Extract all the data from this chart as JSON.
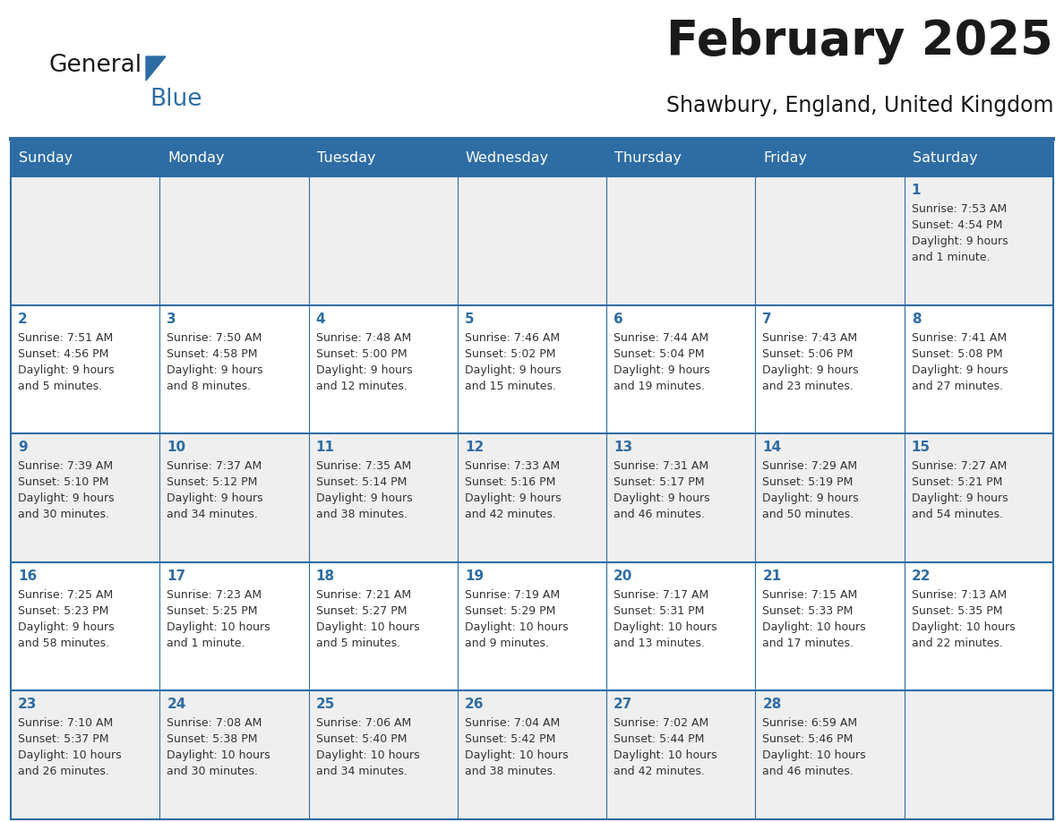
{
  "title": "February 2025",
  "subtitle": "Shawbury, England, United Kingdom",
  "header_bg": "#2E6DA4",
  "header_text_color": "#FFFFFF",
  "cell_bg_odd": "#EFEFEF",
  "cell_bg_even": "#FFFFFF",
  "border_color": "#2E6DA4",
  "day_headers": [
    "Sunday",
    "Monday",
    "Tuesday",
    "Wednesday",
    "Thursday",
    "Friday",
    "Saturday"
  ],
  "title_color": "#1a1a1a",
  "subtitle_color": "#1a1a1a",
  "day_number_color": "#2E6DA4",
  "text_color": "#333333",
  "logo_general_color": "#1a1a1a",
  "logo_blue_color": "#2E6DA4",
  "weeks": [
    [
      {
        "day": null,
        "info": ""
      },
      {
        "day": null,
        "info": ""
      },
      {
        "day": null,
        "info": ""
      },
      {
        "day": null,
        "info": ""
      },
      {
        "day": null,
        "info": ""
      },
      {
        "day": null,
        "info": ""
      },
      {
        "day": 1,
        "info": "Sunrise: 7:53 AM\nSunset: 4:54 PM\nDaylight: 9 hours\nand 1 minute."
      }
    ],
    [
      {
        "day": 2,
        "info": "Sunrise: 7:51 AM\nSunset: 4:56 PM\nDaylight: 9 hours\nand 5 minutes."
      },
      {
        "day": 3,
        "info": "Sunrise: 7:50 AM\nSunset: 4:58 PM\nDaylight: 9 hours\nand 8 minutes."
      },
      {
        "day": 4,
        "info": "Sunrise: 7:48 AM\nSunset: 5:00 PM\nDaylight: 9 hours\nand 12 minutes."
      },
      {
        "day": 5,
        "info": "Sunrise: 7:46 AM\nSunset: 5:02 PM\nDaylight: 9 hours\nand 15 minutes."
      },
      {
        "day": 6,
        "info": "Sunrise: 7:44 AM\nSunset: 5:04 PM\nDaylight: 9 hours\nand 19 minutes."
      },
      {
        "day": 7,
        "info": "Sunrise: 7:43 AM\nSunset: 5:06 PM\nDaylight: 9 hours\nand 23 minutes."
      },
      {
        "day": 8,
        "info": "Sunrise: 7:41 AM\nSunset: 5:08 PM\nDaylight: 9 hours\nand 27 minutes."
      }
    ],
    [
      {
        "day": 9,
        "info": "Sunrise: 7:39 AM\nSunset: 5:10 PM\nDaylight: 9 hours\nand 30 minutes."
      },
      {
        "day": 10,
        "info": "Sunrise: 7:37 AM\nSunset: 5:12 PM\nDaylight: 9 hours\nand 34 minutes."
      },
      {
        "day": 11,
        "info": "Sunrise: 7:35 AM\nSunset: 5:14 PM\nDaylight: 9 hours\nand 38 minutes."
      },
      {
        "day": 12,
        "info": "Sunrise: 7:33 AM\nSunset: 5:16 PM\nDaylight: 9 hours\nand 42 minutes."
      },
      {
        "day": 13,
        "info": "Sunrise: 7:31 AM\nSunset: 5:17 PM\nDaylight: 9 hours\nand 46 minutes."
      },
      {
        "day": 14,
        "info": "Sunrise: 7:29 AM\nSunset: 5:19 PM\nDaylight: 9 hours\nand 50 minutes."
      },
      {
        "day": 15,
        "info": "Sunrise: 7:27 AM\nSunset: 5:21 PM\nDaylight: 9 hours\nand 54 minutes."
      }
    ],
    [
      {
        "day": 16,
        "info": "Sunrise: 7:25 AM\nSunset: 5:23 PM\nDaylight: 9 hours\nand 58 minutes."
      },
      {
        "day": 17,
        "info": "Sunrise: 7:23 AM\nSunset: 5:25 PM\nDaylight: 10 hours\nand 1 minute."
      },
      {
        "day": 18,
        "info": "Sunrise: 7:21 AM\nSunset: 5:27 PM\nDaylight: 10 hours\nand 5 minutes."
      },
      {
        "day": 19,
        "info": "Sunrise: 7:19 AM\nSunset: 5:29 PM\nDaylight: 10 hours\nand 9 minutes."
      },
      {
        "day": 20,
        "info": "Sunrise: 7:17 AM\nSunset: 5:31 PM\nDaylight: 10 hours\nand 13 minutes."
      },
      {
        "day": 21,
        "info": "Sunrise: 7:15 AM\nSunset: 5:33 PM\nDaylight: 10 hours\nand 17 minutes."
      },
      {
        "day": 22,
        "info": "Sunrise: 7:13 AM\nSunset: 5:35 PM\nDaylight: 10 hours\nand 22 minutes."
      }
    ],
    [
      {
        "day": 23,
        "info": "Sunrise: 7:10 AM\nSunset: 5:37 PM\nDaylight: 10 hours\nand 26 minutes."
      },
      {
        "day": 24,
        "info": "Sunrise: 7:08 AM\nSunset: 5:38 PM\nDaylight: 10 hours\nand 30 minutes."
      },
      {
        "day": 25,
        "info": "Sunrise: 7:06 AM\nSunset: 5:40 PM\nDaylight: 10 hours\nand 34 minutes."
      },
      {
        "day": 26,
        "info": "Sunrise: 7:04 AM\nSunset: 5:42 PM\nDaylight: 10 hours\nand 38 minutes."
      },
      {
        "day": 27,
        "info": "Sunrise: 7:02 AM\nSunset: 5:44 PM\nDaylight: 10 hours\nand 42 minutes."
      },
      {
        "day": 28,
        "info": "Sunrise: 6:59 AM\nSunset: 5:46 PM\nDaylight: 10 hours\nand 46 minutes."
      },
      {
        "day": null,
        "info": ""
      }
    ]
  ]
}
